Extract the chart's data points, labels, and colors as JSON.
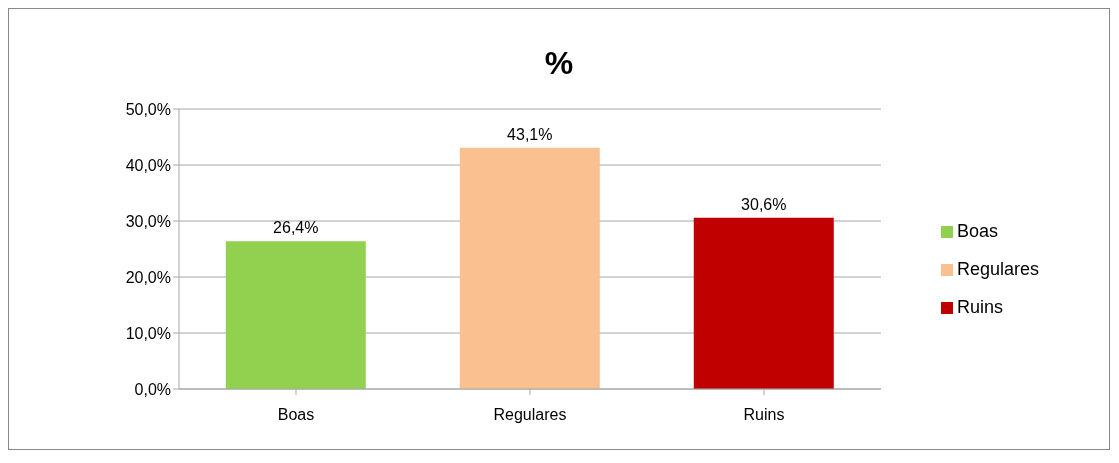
{
  "chart_data": {
    "type": "bar",
    "title": "%",
    "categories": [
      "Boas",
      "Regulares",
      "Ruins"
    ],
    "series": [
      {
        "name": "Boas",
        "color": "#92d050",
        "values": [
          26.4,
          null,
          null
        ],
        "value_labels": [
          "26,4%",
          null,
          null
        ]
      },
      {
        "name": "Regulares",
        "color": "#fac090",
        "values": [
          null,
          43.1,
          null
        ],
        "value_labels": [
          null,
          "43,1%",
          null
        ]
      },
      {
        "name": "Ruins",
        "color": "#c00000",
        "values": [
          null,
          null,
          30.6
        ],
        "value_labels": [
          null,
          null,
          "30,6%"
        ]
      }
    ],
    "ylim": [
      0,
      50
    ],
    "yticks": [
      {
        "value": 0,
        "label": "0,0%"
      },
      {
        "value": 10,
        "label": "10,0%"
      },
      {
        "value": 20,
        "label": "20,0%"
      },
      {
        "value": 30,
        "label": "30,0%"
      },
      {
        "value": 40,
        "label": "40,0%"
      },
      {
        "value": 50,
        "label": "50,0%"
      }
    ],
    "grid": "y",
    "legend": "right"
  }
}
